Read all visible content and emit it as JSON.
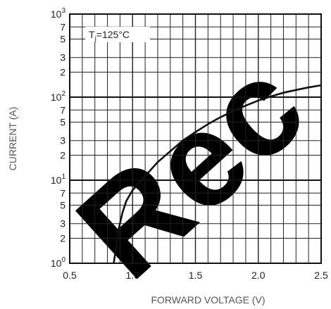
{
  "chart_data": {
    "type": "line",
    "title": "",
    "xlabel": "FORWARD VOLTAGE (V)",
    "ylabel": "CURRENT (A)",
    "xscale": "linear",
    "yscale": "log",
    "xlim": [
      0.5,
      2.5
    ],
    "ylim": [
      1,
      1000
    ],
    "grid": true,
    "x_ticks": [
      {
        "value": 0.5,
        "label": "0.5"
      },
      {
        "value": 1.0,
        "label": "1.0"
      },
      {
        "value": 1.5,
        "label": "1.5"
      },
      {
        "value": 2.0,
        "label": "2.0"
      },
      {
        "value": 2.5,
        "label": "2.5"
      }
    ],
    "x_minor_ticks": [
      0.6,
      0.7,
      0.8,
      0.9,
      1.1,
      1.2,
      1.3,
      1.4,
      1.6,
      1.7,
      1.8,
      1.9,
      2.1,
      2.2,
      2.3,
      2.4
    ],
    "y_major_ticks": [
      {
        "value": 1,
        "base": "10",
        "exp": "0"
      },
      {
        "value": 10,
        "base": "10",
        "exp": "1"
      },
      {
        "value": 100,
        "base": "10",
        "exp": "2"
      },
      {
        "value": 1000,
        "base": "10",
        "exp": "3"
      }
    ],
    "y_minor_ticks": [
      {
        "value": 2,
        "label": "2"
      },
      {
        "value": 3,
        "label": "3"
      },
      {
        "value": 5,
        "label": "5"
      },
      {
        "value": 7,
        "label": "7"
      },
      {
        "value": 20,
        "label": "2"
      },
      {
        "value": 30,
        "label": "3"
      },
      {
        "value": 50,
        "label": "5"
      },
      {
        "value": 70,
        "label": "7"
      },
      {
        "value": 200,
        "label": "2"
      },
      {
        "value": 300,
        "label": "3"
      },
      {
        "value": 500,
        "label": "5"
      },
      {
        "value": 700,
        "label": "7"
      }
    ],
    "annotation": {
      "prefix": "T",
      "subscript": "j",
      "suffix": "=125°C"
    },
    "series": [
      {
        "color": "#111111",
        "points": [
          {
            "x": 0.85,
            "y": 1.0
          },
          {
            "x": 0.87,
            "y": 1.6
          },
          {
            "x": 0.89,
            "y": 2.6
          },
          {
            "x": 0.92,
            "y": 4.1
          },
          {
            "x": 0.95,
            "y": 5.6
          },
          {
            "x": 1.0,
            "y": 7.6
          },
          {
            "x": 1.1,
            "y": 11.2
          },
          {
            "x": 1.2,
            "y": 16.5
          },
          {
            "x": 1.3,
            "y": 22.3
          },
          {
            "x": 1.4,
            "y": 30.0
          },
          {
            "x": 1.5,
            "y": 38.0
          },
          {
            "x": 1.6,
            "y": 47.4
          },
          {
            "x": 1.7,
            "y": 57.5
          },
          {
            "x": 1.8,
            "y": 68.0
          },
          {
            "x": 1.9,
            "y": 79.0
          },
          {
            "x": 2.0,
            "y": 91.0
          },
          {
            "x": 2.1,
            "y": 102.0
          },
          {
            "x": 2.2,
            "y": 113.0
          },
          {
            "x": 2.3,
            "y": 122.0
          },
          {
            "x": 2.4,
            "y": 131.0
          },
          {
            "x": 2.5,
            "y": 139.0
          }
        ]
      }
    ]
  },
  "watermark": {
    "text": "Rec",
    "color": "#000000"
  }
}
